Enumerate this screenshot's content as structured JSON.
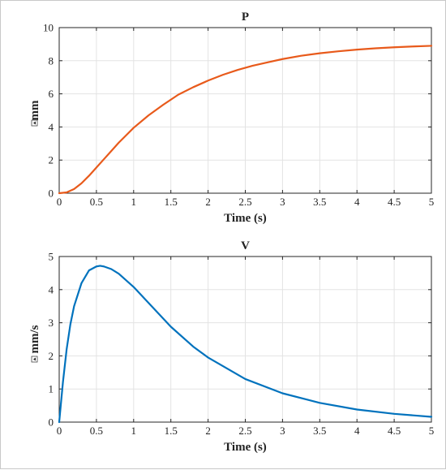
{
  "chart_data": [
    {
      "type": "line",
      "title": "P",
      "xlabel": "Time (s)",
      "ylabel": "mm",
      "xlim": [
        0,
        5
      ],
      "ylim": [
        0,
        10
      ],
      "xticks": [
        "0",
        "0.5",
        "1",
        "1.5",
        "2",
        "2.5",
        "3",
        "3.5",
        "4",
        "4.5",
        "5"
      ],
      "yticks": [
        "0",
        "2",
        "4",
        "6",
        "8",
        "10"
      ],
      "grid": true,
      "color": "#E85A1B",
      "series": [
        {
          "x": [
            0,
            0.1,
            0.2,
            0.3,
            0.4,
            0.5,
            0.6,
            0.7,
            0.8,
            0.9,
            1.0,
            1.2,
            1.4,
            1.6,
            1.8,
            2.0,
            2.2,
            2.4,
            2.6,
            2.8,
            3.0,
            3.25,
            3.5,
            3.75,
            4.0,
            4.25,
            4.5,
            4.75,
            5.0
          ],
          "values": [
            0,
            0.05,
            0.25,
            0.6,
            1.05,
            1.55,
            2.05,
            2.55,
            3.05,
            3.5,
            3.95,
            4.7,
            5.35,
            5.95,
            6.4,
            6.8,
            7.15,
            7.45,
            7.7,
            7.9,
            8.1,
            8.3,
            8.45,
            8.57,
            8.67,
            8.75,
            8.81,
            8.86,
            8.9
          ]
        }
      ]
    },
    {
      "type": "line",
      "title": "V",
      "xlabel": "Time (s)",
      "ylabel": "mm/s",
      "xlim": [
        0,
        5
      ],
      "ylim": [
        0,
        5
      ],
      "xticks": [
        "0",
        "0.5",
        "1",
        "1.5",
        "2",
        "2.5",
        "3",
        "3.5",
        "4",
        "4.5",
        "5"
      ],
      "yticks": [
        "0",
        "1",
        "2",
        "3",
        "4",
        "5"
      ],
      "grid": true,
      "color": "#0072BD",
      "series": [
        {
          "x": [
            0,
            0.05,
            0.1,
            0.15,
            0.2,
            0.3,
            0.4,
            0.5,
            0.55,
            0.6,
            0.7,
            0.8,
            1.0,
            1.2,
            1.5,
            1.8,
            2.0,
            2.5,
            3.0,
            3.5,
            4.0,
            4.5,
            5.0
          ],
          "values": [
            0,
            1.2,
            2.2,
            2.95,
            3.5,
            4.2,
            4.58,
            4.7,
            4.72,
            4.7,
            4.62,
            4.48,
            4.08,
            3.6,
            2.88,
            2.28,
            1.95,
            1.3,
            0.87,
            0.58,
            0.38,
            0.25,
            0.16
          ]
        }
      ]
    }
  ]
}
